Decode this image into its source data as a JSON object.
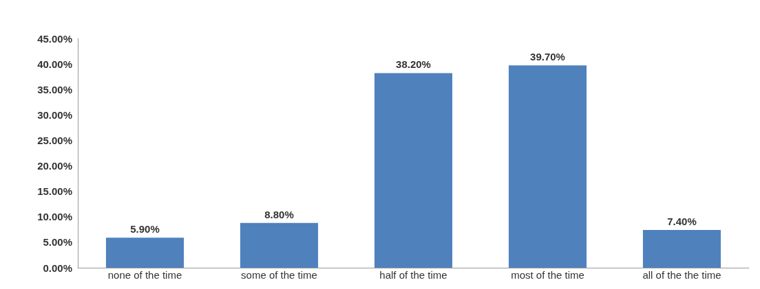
{
  "chart_data": {
    "type": "bar",
    "categories": [
      "none of the time",
      "some of the time",
      "half of the time",
      "most of the time",
      "all of the the time"
    ],
    "values": [
      5.9,
      8.8,
      38.2,
      39.7,
      7.4
    ],
    "value_labels": [
      "5.90%",
      "8.80%",
      "38.20%",
      "39.70%",
      "7.40%"
    ],
    "color": "#4f81bd",
    "ylim": [
      0,
      45
    ],
    "yticks": [
      {
        "value": 0,
        "label": "0.00%"
      },
      {
        "value": 5,
        "label": "5.00%"
      },
      {
        "value": 10,
        "label": "10.00%"
      },
      {
        "value": 15,
        "label": "15.00%"
      },
      {
        "value": 20,
        "label": "20.00%"
      },
      {
        "value": 25,
        "label": "25.00%"
      },
      {
        "value": 30,
        "label": "30.00%"
      },
      {
        "value": 35,
        "label": "35.00%"
      },
      {
        "value": 40,
        "label": "40.00%"
      },
      {
        "value": 45,
        "label": "45.00%"
      }
    ],
    "grid": false
  }
}
